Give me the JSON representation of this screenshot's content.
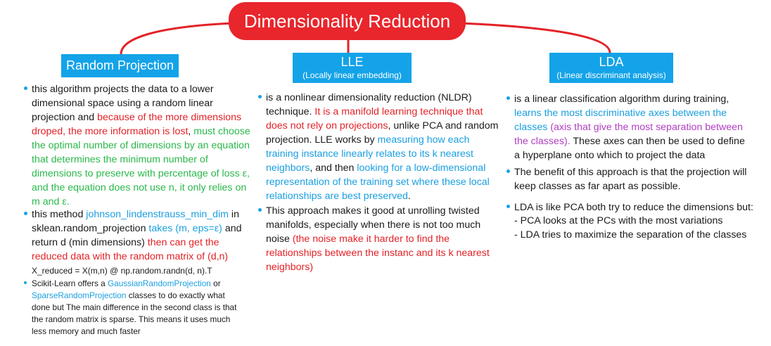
{
  "root": {
    "title": "Dimensionality Reduction"
  },
  "colors": {
    "root": "#e8262c",
    "branch": "#14a3e8",
    "connector": "#e32227",
    "red": "#e32227",
    "blue": "#1a9fe0",
    "green": "#2ab84a",
    "purple": "#b03fc2"
  },
  "branches": {
    "rp": {
      "title": "Random Projection",
      "b1": [
        "this algorithm projects the data to a lower dimensional space using a random linear projection and ",
        "because of the more dimensions droped, the more information is lost",
        ", ",
        "must choose the optimal number of dimensions by an equation that determines the minimum number of dimensions to preserve with percentage of loss ε, and the equation does not use n, it only relies on m and ε."
      ],
      "b2": [
        "this method ",
        "johnson_lindenstrauss_min_dim",
        " in sklean.random_projection ",
        "takes (m, eps=ε)",
        " and return d (min dimensions) ",
        "then can get the reduced data with the random matrix of (d,n)"
      ],
      "code": "X_reduced = X(m,n) @ np.random.randn(d, n).T",
      "b3": [
        "Scikit-Learn offers a ",
        "GaussianRandomProjection",
        " or ",
        "SparseRandomProjection",
        " classes to do exactly what done but The main difference in the second class is that the random matrix is sparse. This means it uses much less memory and much faster"
      ]
    },
    "lle": {
      "title": "LLE",
      "subtitle": "(Locally linear embedding)",
      "b1": [
        "is a nonlinear dimensionality reduction (NLDR) technique. ",
        "It is a manifold learning technique that does not rely on projections",
        ", unlike PCA and random projection. LLE works by ",
        "measuring how each training instance linearly relates to its k nearest neighbors",
        ", and then ",
        "looking for a low-dimensional representation of the training set where these local relationships are best preserved",
        "."
      ],
      "b2": [
        "This approach makes it good at unrolling twisted manifolds, especially when there is not too much noise ",
        "(the noise make it harder to find the relationships between the instanc and its k nearest neighbors)"
      ]
    },
    "lda": {
      "title": "LDA",
      "subtitle": "(Linear discriminant analysis)",
      "b1": [
        "is a linear classification algorithm during training, ",
        "learns the most discriminative axes between the classes ",
        "(axis that give the most separation between the classes).",
        " These axes can then be used to define a hyperplane onto which to project the data"
      ],
      "b2": "The benefit of this approach is that the projection will keep classes as far apart as possible.",
      "b3": {
        "text": "LDA is like PCA both try to reduce the dimensions but:",
        "line1": "-  PCA looks at the PCs with the most variations",
        "line2": "-  LDA tries to maximize the separation of the classes"
      }
    }
  }
}
